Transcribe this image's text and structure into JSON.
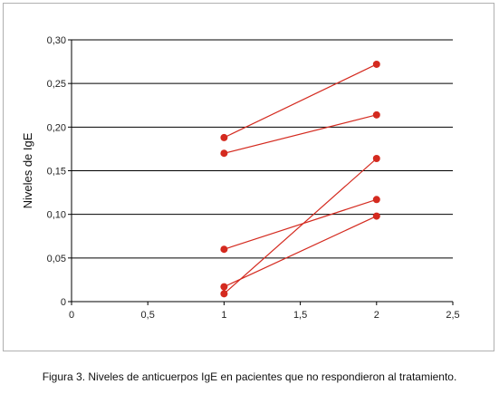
{
  "caption": "Figura 3. Niveles de anticuerpos IgE en pacientes que no respondieron al tratamiento.",
  "colors": {
    "series": "#d42a1f",
    "grid": "#000000",
    "frame": "#b0b0b0"
  },
  "chart_data": {
    "type": "line",
    "title": "",
    "xlabel": "",
    "ylabel": "Niveles de IgE",
    "xlim": [
      0,
      2.5
    ],
    "ylim": [
      0,
      0.3
    ],
    "x_ticks": [
      "0",
      "0,5",
      "1",
      "1,5",
      "2",
      "2,5"
    ],
    "x_tick_values": [
      0,
      0.5,
      1,
      1.5,
      2,
      2.5
    ],
    "y_ticks": [
      "0",
      "0,05",
      "0,10",
      "0,15",
      "0,20",
      "0,25",
      "0,30"
    ],
    "y_tick_values": [
      0,
      0.05,
      0.1,
      0.15,
      0.2,
      0.25,
      0.3
    ],
    "grid": "horizontal",
    "legend": "none",
    "series": [
      {
        "x": [
          1,
          2
        ],
        "y": [
          0.188,
          0.272
        ]
      },
      {
        "x": [
          1,
          2
        ],
        "y": [
          0.17,
          0.214
        ]
      },
      {
        "x": [
          1,
          2
        ],
        "y": [
          0.06,
          0.117
        ]
      },
      {
        "x": [
          1,
          2
        ],
        "y": [
          0.017,
          0.098
        ]
      },
      {
        "x": [
          1,
          2
        ],
        "y": [
          0.009,
          0.164
        ]
      }
    ]
  }
}
